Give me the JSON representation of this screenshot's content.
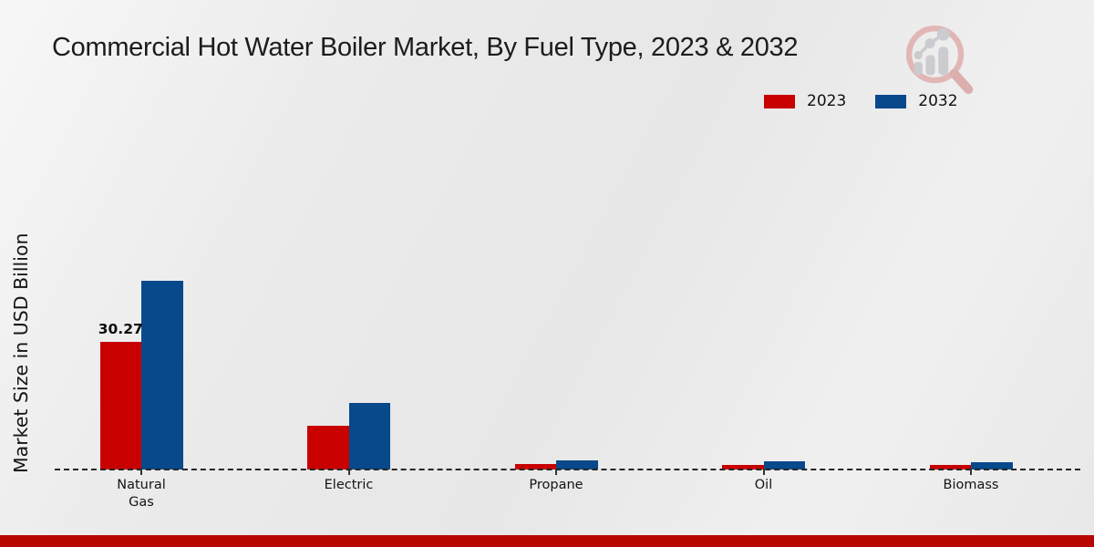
{
  "chart_data": {
    "type": "bar",
    "title": "Commercial Hot Water Boiler Market, By Fuel Type, 2023 & 2032",
    "xlabel": "",
    "ylabel": "Market Size in USD Billion",
    "categories": [
      "Natural Gas",
      "Electric",
      "Propane",
      "Oil",
      "Biomass"
    ],
    "series": [
      {
        "name": "2023",
        "color": "#c80000",
        "values": [
          30.27,
          10.3,
          1.25,
          1.15,
          1.0
        ]
      },
      {
        "name": "2032",
        "color": "#07498a",
        "values": [
          44.8,
          15.8,
          2.1,
          2.0,
          1.8
        ]
      }
    ],
    "bar_labels": [
      {
        "series": 0,
        "category": 0,
        "text": "30.27"
      }
    ],
    "ylim": [
      0,
      50
    ],
    "grid": false,
    "baseline_style": "dashed",
    "legend_position": "top-right"
  },
  "colors": {
    "series_2023": "#c80000",
    "series_2032": "#07498a",
    "footer_accent": "#b90404",
    "baseline": "#262626",
    "background": "#ebebeb"
  },
  "branding": {
    "logo_icon": "magnifier-growth-chart-icon"
  }
}
